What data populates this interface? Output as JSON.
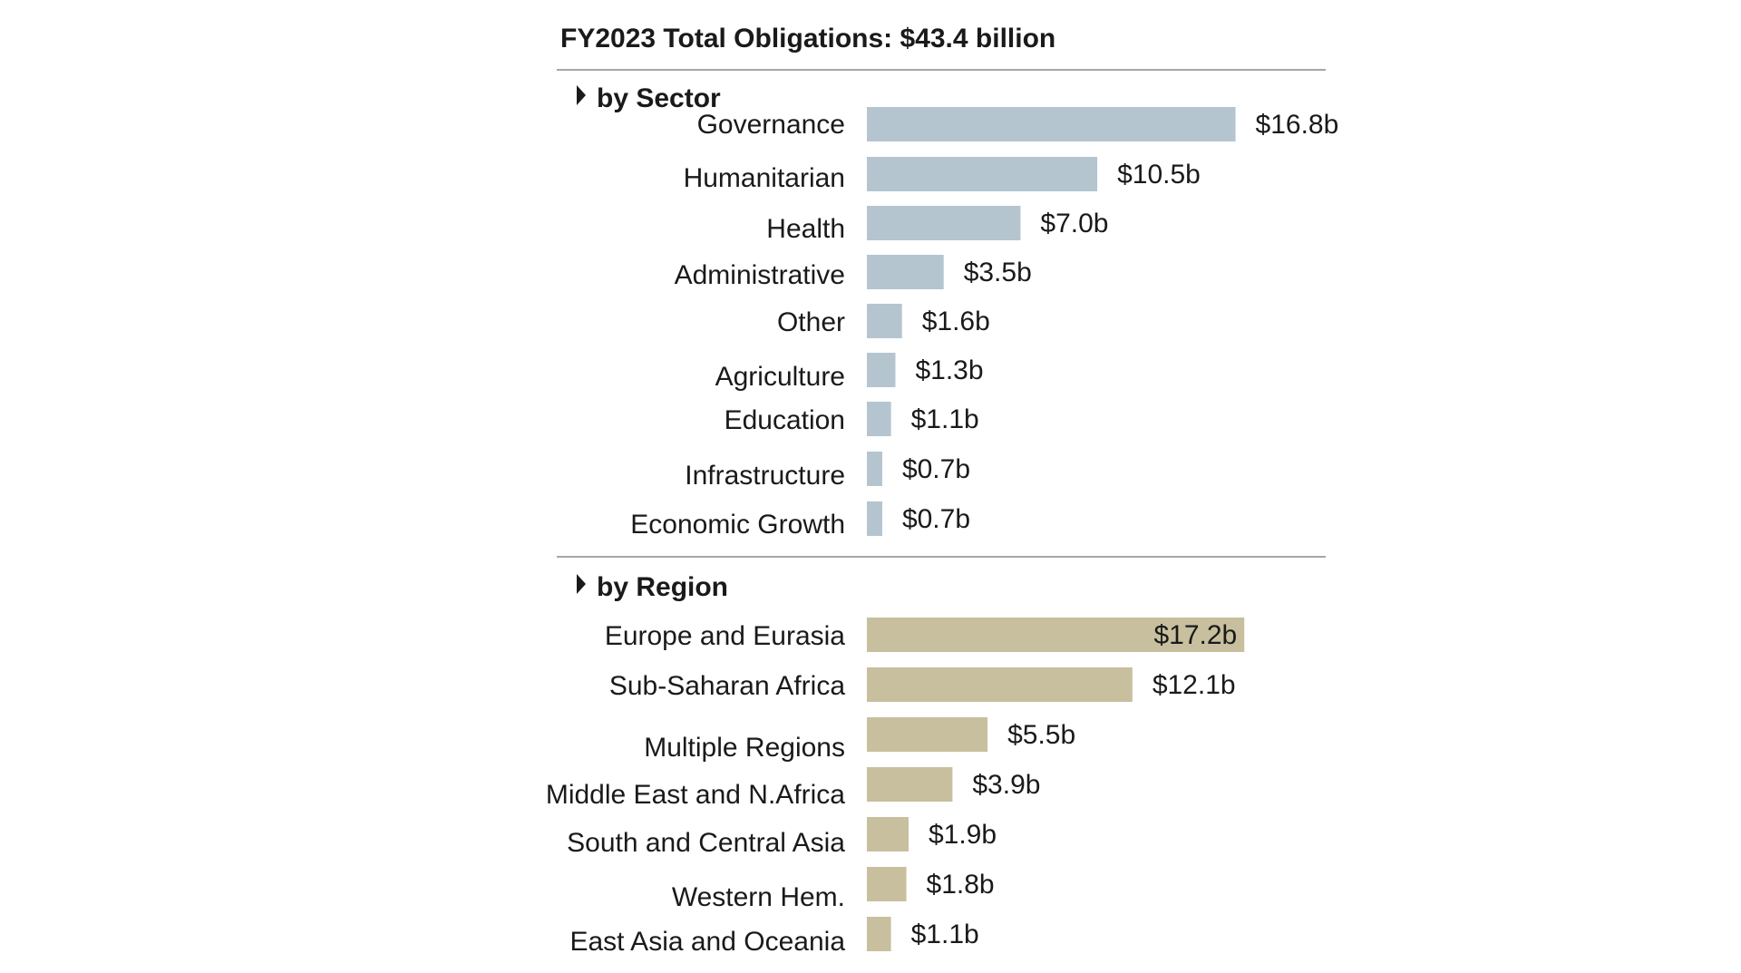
{
  "chart_data": {
    "type": "bar",
    "orientation": "horizontal",
    "title": "FY2023 Total Obligations: $43.4 billion",
    "groups": [
      {
        "name": "by Sector",
        "color": "#b4c5d0",
        "categories": [
          "Governance",
          "Humanitarian",
          "Health",
          "Administrative",
          "Other",
          "Agriculture",
          "Education",
          "Infrastructure",
          "Economic Growth"
        ],
        "values": [
          16.8,
          10.5,
          7.0,
          3.5,
          1.6,
          1.3,
          1.1,
          0.7,
          0.7
        ],
        "value_labels": [
          "$16.8b",
          "$10.5b",
          "$7.0b",
          "$3.5b",
          "$1.6b",
          "$1.3b",
          "$1.1b",
          "$0.7b",
          "$0.7b"
        ]
      },
      {
        "name": "by Region",
        "color": "#c7bf9e",
        "categories": [
          "Europe and Eurasia",
          "Sub-Saharan Africa",
          "Multiple Regions",
          "Middle East and N.Africa",
          "South and Central Asia",
          "Western Hem.",
          "East Asia and Oceania"
        ],
        "values": [
          17.2,
          12.1,
          5.5,
          3.9,
          1.9,
          1.8,
          1.1
        ],
        "value_labels": [
          "$17.2b",
          "$12.1b",
          "$5.5b",
          "$3.9b",
          "$1.9b",
          "$1.8b",
          "$1.1b"
        ]
      }
    ],
    "grid": false,
    "legend": "none"
  }
}
